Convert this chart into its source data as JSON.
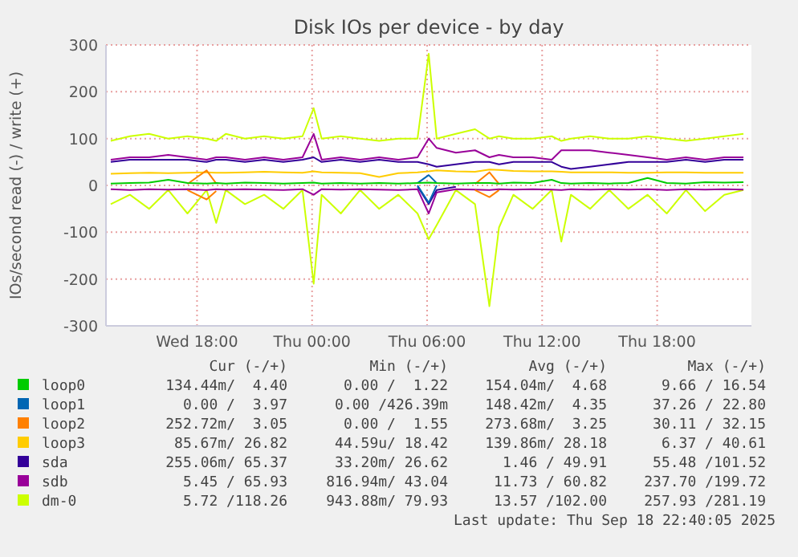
{
  "chart_data": {
    "type": "line",
    "title": "Disk IOs per device - by day",
    "ylabel": "IOs/second read (-) / write (+)",
    "x": [
      "2025-09-17T13:30",
      "2025-09-17T14:30",
      "2025-09-17T15:30",
      "2025-09-17T16:30",
      "2025-09-17T17:30",
      "2025-09-17T18:30",
      "2025-09-17T19:00",
      "2025-09-17T19:30",
      "2025-09-17T20:30",
      "2025-09-17T21:30",
      "2025-09-17T22:30",
      "2025-09-17T23:30",
      "2025-09-18T00:05",
      "2025-09-18T00:30",
      "2025-09-18T01:30",
      "2025-09-18T02:30",
      "2025-09-18T03:30",
      "2025-09-18T04:30",
      "2025-09-18T05:30",
      "2025-09-18T06:05",
      "2025-09-18T06:30",
      "2025-09-18T07:30",
      "2025-09-18T08:30",
      "2025-09-18T09:15",
      "2025-09-18T09:45",
      "2025-09-18T10:30",
      "2025-09-18T11:30",
      "2025-09-18T12:30",
      "2025-09-18T13:00",
      "2025-09-18T13:30",
      "2025-09-18T14:30",
      "2025-09-18T15:30",
      "2025-09-18T16:30",
      "2025-09-18T17:30",
      "2025-09-18T18:30",
      "2025-09-18T19:30",
      "2025-09-18T20:30",
      "2025-09-18T21:30",
      "2025-09-18T22:30"
    ],
    "xlim": [
      "2025-09-17T13:15",
      "2025-09-18T22:55"
    ],
    "xticks": [
      {
        "value": "2025-09-17T18:00",
        "label": "Wed 18:00"
      },
      {
        "value": "2025-09-18T00:00",
        "label": "Thu 00:00"
      },
      {
        "value": "2025-09-18T06:00",
        "label": "Thu 06:00"
      },
      {
        "value": "2025-09-18T12:00",
        "label": "Thu 12:00"
      },
      {
        "value": "2025-09-18T18:00",
        "label": "Thu 18:00"
      }
    ],
    "ylim": [
      -300,
      300
    ],
    "yticks": [
      -300,
      -200,
      -100,
      0,
      100,
      200,
      300
    ],
    "grid": true,
    "legend": "bottom",
    "series": [
      {
        "name": "loop0",
        "color": "#00cc00",
        "values": [
          4,
          5,
          6,
          12,
          5,
          4,
          5,
          4,
          6,
          5,
          4,
          5,
          6,
          4,
          5,
          4,
          5,
          4,
          5,
          6,
          5,
          4,
          5,
          5,
          4,
          6,
          5,
          12,
          5,
          4,
          5,
          4,
          5,
          16,
          5,
          4,
          7,
          6,
          7
        ]
      },
      {
        "name": "loop1",
        "color": "#0066b3",
        "values": [
          null,
          null,
          null,
          null,
          null,
          null,
          null,
          null,
          null,
          null,
          null,
          null,
          null,
          null,
          null,
          null,
          null,
          null,
          5,
          22,
          5,
          null,
          null,
          null,
          null,
          null,
          null,
          null,
          null,
          null,
          null,
          null,
          null,
          null,
          null,
          null,
          null,
          null,
          null
        ]
      },
      {
        "color": "#0066b3",
        "values": [
          null,
          null,
          null,
          null,
          null,
          null,
          null,
          null,
          null,
          null,
          null,
          null,
          null,
          null,
          null,
          null,
          null,
          null,
          0,
          -37,
          0,
          null,
          null,
          null,
          null,
          null,
          null,
          null,
          null,
          null,
          null,
          null,
          null,
          null,
          null,
          null,
          null,
          null,
          null
        ]
      },
      {
        "name": "loop2",
        "color": "#ff8000",
        "values": [
          null,
          null,
          null,
          null,
          3,
          32,
          4,
          null,
          null,
          null,
          null,
          null,
          null,
          null,
          null,
          null,
          null,
          null,
          null,
          null,
          null,
          null,
          3,
          28,
          3,
          null,
          null,
          null,
          null,
          null,
          null,
          null,
          null,
          null,
          null,
          null,
          null,
          null,
          null
        ]
      },
      {
        "color": "#ff8000",
        "values": [
          null,
          null,
          null,
          null,
          -10,
          -30,
          -12,
          null,
          null,
          null,
          null,
          null,
          null,
          null,
          null,
          null,
          null,
          null,
          null,
          null,
          null,
          null,
          -10,
          -25,
          -10,
          null,
          null,
          null,
          null,
          null,
          null,
          null,
          null,
          null,
          null,
          null,
          null,
          null,
          null
        ]
      },
      {
        "name": "loop3",
        "color": "#ffcc00",
        "values": [
          25,
          26,
          27,
          26,
          27,
          28,
          27,
          27,
          28,
          29,
          28,
          27,
          30,
          28,
          27,
          26,
          18,
          26,
          28,
          30,
          32,
          30,
          29,
          34,
          33,
          31,
          30,
          30,
          29,
          28,
          28,
          28,
          27,
          27,
          28,
          28,
          27,
          27,
          27
        ]
      },
      {
        "name": "sda",
        "color": "#330099",
        "values": [
          50,
          55,
          55,
          55,
          55,
          50,
          55,
          55,
          50,
          55,
          50,
          55,
          60,
          50,
          55,
          50,
          55,
          50,
          50,
          45,
          40,
          45,
          50,
          50,
          45,
          50,
          50,
          50,
          40,
          35,
          40,
          45,
          50,
          50,
          50,
          55,
          50,
          55,
          55
        ]
      },
      {
        "color": "#330099",
        "values": [
          null,
          null,
          null,
          null,
          null,
          null,
          null,
          null,
          null,
          null,
          null,
          null,
          null,
          null,
          null,
          null,
          null,
          null,
          -2,
          -40,
          -10,
          -3,
          null,
          null,
          null,
          null,
          null,
          null,
          null,
          null,
          null,
          null,
          null,
          null,
          null,
          null,
          null,
          null,
          null
        ]
      },
      {
        "name": "sdb",
        "color": "#990099",
        "values": [
          55,
          60,
          60,
          65,
          60,
          55,
          60,
          60,
          55,
          60,
          55,
          60,
          110,
          55,
          60,
          55,
          60,
          55,
          60,
          100,
          80,
          70,
          75,
          60,
          65,
          60,
          60,
          55,
          75,
          75,
          75,
          70,
          65,
          60,
          55,
          60,
          55,
          60,
          60
        ]
      },
      {
        "color": "#990099",
        "values": [
          -8,
          -10,
          -8,
          -9,
          -8,
          -10,
          -8,
          -9,
          -8,
          -9,
          -10,
          -8,
          -20,
          -8,
          -9,
          -8,
          -9,
          -10,
          -8,
          -60,
          -15,
          -8,
          -9,
          -10,
          -8,
          -9,
          -8,
          -9,
          -10,
          -8,
          -9,
          -8,
          -9,
          -8,
          -10,
          -8,
          -9,
          -8,
          -9
        ]
      },
      {
        "name": "dm-0",
        "color": "#ccff00",
        "values": [
          95,
          105,
          110,
          100,
          105,
          100,
          95,
          110,
          100,
          105,
          100,
          105,
          165,
          100,
          105,
          100,
          95,
          100,
          100,
          281,
          100,
          110,
          120,
          100,
          105,
          100,
          100,
          105,
          95,
          100,
          105,
          100,
          100,
          105,
          100,
          95,
          100,
          105,
          110
        ]
      },
      {
        "color": "#ccff00",
        "values": [
          -40,
          -20,
          -50,
          -10,
          -60,
          -10,
          -80,
          -10,
          -40,
          -20,
          -50,
          -10,
          -210,
          -20,
          -60,
          -10,
          -50,
          -20,
          -60,
          -115,
          -85,
          -10,
          -40,
          -258,
          -90,
          -20,
          -50,
          -10,
          -120,
          -20,
          -50,
          -10,
          -50,
          -20,
          -60,
          -10,
          -55,
          -20,
          -10
        ]
      }
    ],
    "annotations": [
      "Cur (-/+)",
      "Min (-/+)",
      "Avg (-/+)",
      "Max (-/+)",
      "134.44m/  4.40",
      "0.00 /  1.22",
      "154.04m/  4.68",
      "9.66 / 16.54",
      "0.00 /  3.97",
      "0.00 /426.39m",
      "148.42m/  4.35",
      "37.26 / 22.80",
      "252.72m/  3.05",
      "0.00 /  1.55",
      "273.68m/  3.25",
      "30.11 / 32.15",
      "85.67m/ 26.82",
      "44.59u/ 18.42",
      "139.86m/ 28.18",
      "6.37 / 40.61",
      "255.06m/ 65.37",
      "33.20m/ 26.62",
      "1.46 / 49.91",
      "55.48 /101.52",
      "5.45 / 65.93",
      "816.94m/ 43.04",
      "11.73 / 60.82",
      "237.70 /199.72",
      "5.72 /118.26",
      "943.88m/ 79.93",
      "13.57 /102.00",
      "257.93 /281.19",
      "Last update: Thu Sep 18 22:40:05 2025"
    ]
  }
}
